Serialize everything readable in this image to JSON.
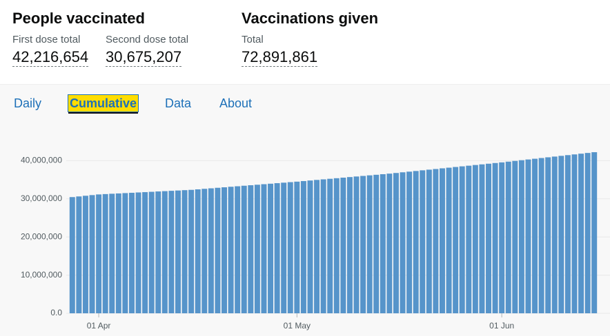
{
  "header": {
    "people_vaccinated": {
      "title": "People vaccinated",
      "first_dose": {
        "label": "First dose total",
        "value": "42,216,654"
      },
      "second_dose": {
        "label": "Second dose total",
        "value": "30,675,207"
      }
    },
    "vaccinations_given": {
      "title": "Vaccinations given",
      "total": {
        "label": "Total",
        "value": "72,891,861"
      }
    }
  },
  "tabs": {
    "items": [
      "Daily",
      "Cumulative",
      "Data",
      "About"
    ],
    "selected": 1
  },
  "chart_data": {
    "type": "bar",
    "color": "#5694ca",
    "grid": true,
    "ylim": [
      0,
      48000000
    ],
    "yticks": [
      {
        "value": 0,
        "label": "0.0"
      },
      {
        "value": 10000000,
        "label": "10,000,000"
      },
      {
        "value": 20000000,
        "label": "20,000,000"
      },
      {
        "value": 30000000,
        "label": "30,000,000"
      },
      {
        "value": 40000000,
        "label": "40,000,000"
      }
    ],
    "categories": [
      null,
      null,
      null,
      null,
      "01 Apr",
      null,
      null,
      null,
      null,
      null,
      null,
      null,
      null,
      null,
      null,
      null,
      null,
      null,
      null,
      null,
      null,
      null,
      null,
      null,
      null,
      null,
      null,
      null,
      null,
      null,
      null,
      null,
      null,
      null,
      "01 May",
      null,
      null,
      null,
      null,
      null,
      null,
      null,
      null,
      null,
      null,
      null,
      null,
      null,
      null,
      null,
      null,
      null,
      null,
      null,
      null,
      null,
      null,
      null,
      null,
      null,
      null,
      null,
      null,
      null,
      null,
      "01 Jun",
      null,
      null,
      null,
      null,
      null,
      null,
      null,
      null,
      null,
      null,
      null,
      null,
      null,
      null
    ],
    "values": [
      30450000,
      30625000,
      30800000,
      30975000,
      31150000,
      31240000,
      31330000,
      31410000,
      31500000,
      31580000,
      31670000,
      31750000,
      31840000,
      31930000,
      32010000,
      32100000,
      32180000,
      32270000,
      32350000,
      32480000,
      32620000,
      32750000,
      32890000,
      33020000,
      33160000,
      33290000,
      33430000,
      33560000,
      33690000,
      33830000,
      33960000,
      34100000,
      34230000,
      34370000,
      34500000,
      34650000,
      34800000,
      34950000,
      35100000,
      35250000,
      35400000,
      35550000,
      35700000,
      35850000,
      36000000,
      36150000,
      36300000,
      36450000,
      36600000,
      36770000,
      36950000,
      37120000,
      37290000,
      37470000,
      37640000,
      37810000,
      37990000,
      38160000,
      38340000,
      38510000,
      38680000,
      38860000,
      39030000,
      39200000,
      39380000,
      39550000,
      39740000,
      39930000,
      40120000,
      40310000,
      40500000,
      40690000,
      40880000,
      41070000,
      41260000,
      41450000,
      41640000,
      41830000,
      42020000,
      42216654
    ]
  }
}
